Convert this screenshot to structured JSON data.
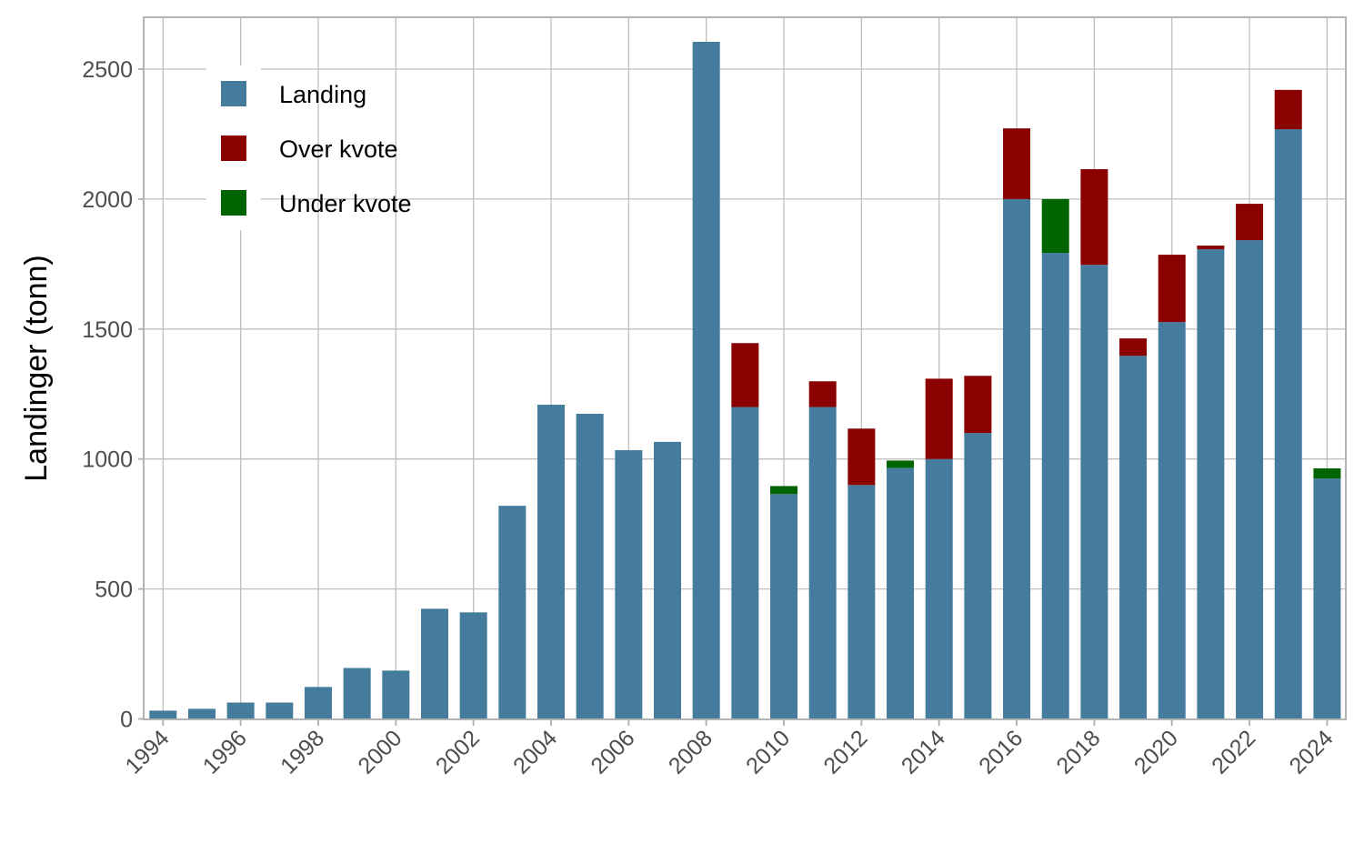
{
  "chart_data": {
    "type": "bar",
    "stacked": true,
    "title": "",
    "xlabel": "",
    "ylabel": "Landinger (tonn)",
    "ylim": [
      0,
      2700
    ],
    "yticks": [
      0,
      500,
      1000,
      1500,
      2000,
      2500
    ],
    "xticks": [
      1994,
      1996,
      1998,
      2000,
      2002,
      2004,
      2006,
      2008,
      2010,
      2012,
      2014,
      2016,
      2018,
      2020,
      2022,
      2024
    ],
    "xtick_rotation": 45,
    "grid": true,
    "legend_position": "top-left inside",
    "categories": [
      1994,
      1995,
      1996,
      1997,
      1998,
      1999,
      2000,
      2001,
      2002,
      2003,
      2004,
      2005,
      2006,
      2007,
      2008,
      2009,
      2010,
      2011,
      2012,
      2013,
      2014,
      2015,
      2016,
      2017,
      2018,
      2019,
      2020,
      2021,
      2022,
      2023,
      2024
    ],
    "series": [
      {
        "name": "Landing",
        "color": "#457B9D",
        "values": [
          32,
          39,
          63,
          63,
          123,
          196,
          186,
          424,
          410,
          820,
          1209,
          1174,
          1034,
          1066,
          2605,
          1200,
          865,
          1200,
          900,
          966,
          1000,
          1100,
          2000,
          1793,
          1747,
          1397,
          1527,
          1807,
          1842,
          2269,
          925
        ]
      },
      {
        "name": "Over kvote",
        "color": "#8B0000",
        "values": [
          0,
          0,
          0,
          0,
          0,
          0,
          0,
          0,
          0,
          0,
          0,
          0,
          0,
          0,
          0,
          246,
          0,
          99,
          217,
          0,
          309,
          220,
          272,
          0,
          368,
          67,
          259,
          14,
          140,
          151,
          0
        ]
      },
      {
        "name": "Under kvote",
        "color": "#006400",
        "values": [
          0,
          0,
          0,
          0,
          0,
          0,
          0,
          0,
          0,
          0,
          0,
          0,
          0,
          0,
          0,
          0,
          31,
          0,
          0,
          28,
          0,
          0,
          0,
          207,
          0,
          0,
          0,
          0,
          0,
          0,
          39
        ]
      }
    ]
  },
  "legend": {
    "items": [
      {
        "label": "Landing",
        "color": "#457B9D"
      },
      {
        "label": "Over kvote",
        "color": "#8B0000"
      },
      {
        "label": "Under kvote",
        "color": "#006400"
      }
    ]
  },
  "axes": {
    "y_title": "Landinger (tonn)",
    "y_tick_labels": [
      "0",
      "500",
      "1000",
      "1500",
      "2000",
      "2500"
    ],
    "x_tick_labels": [
      "1994",
      "1996",
      "1998",
      "2000",
      "2002",
      "2004",
      "2006",
      "2008",
      "2010",
      "2012",
      "2014",
      "2016",
      "2018",
      "2020",
      "2022",
      "2024"
    ]
  },
  "style": {
    "grid_color": "#bfbfbf",
    "panel_border_color": "#b3b3b3",
    "tick_label_color": "#4d4d4d",
    "background": "#ffffff"
  }
}
